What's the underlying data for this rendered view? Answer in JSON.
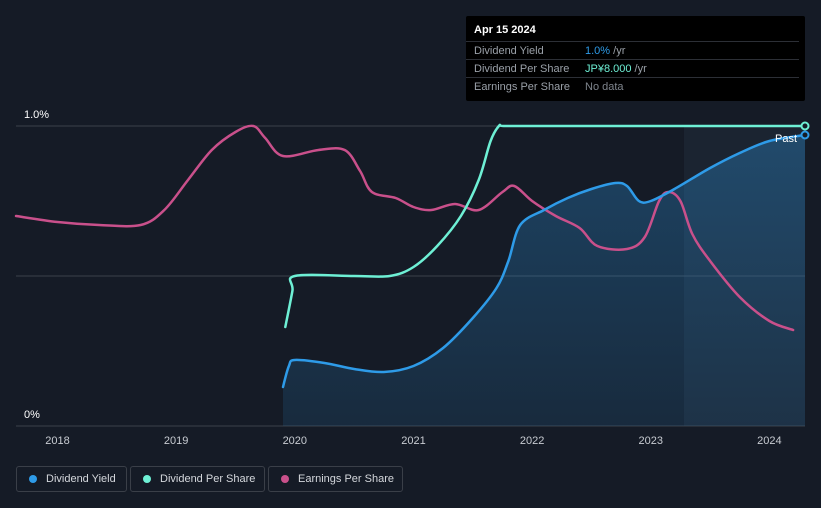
{
  "tooltip": {
    "date": "Apr 15 2024",
    "rows": [
      {
        "label": "Dividend Yield",
        "value": "1.0%",
        "unit": " /yr",
        "color": "#2e9be8"
      },
      {
        "label": "Dividend Per Share",
        "value": "JP¥8.000",
        "unit": " /yr",
        "color": "#6ef0d5"
      },
      {
        "label": "Earnings Per Share",
        "value": "No data",
        "unit": "",
        "color": "#7f858d"
      }
    ]
  },
  "legend": [
    {
      "label": "Dividend Yield",
      "color": "#2e9be8"
    },
    {
      "label": "Dividend Per Share",
      "color": "#6ef0d5"
    },
    {
      "label": "Earnings Per Share",
      "color": "#c9508b"
    }
  ],
  "chart_data": {
    "type": "line",
    "title": "",
    "xlabel": "",
    "ylabel": "",
    "xlim": [
      2017.65,
      2024.3
    ],
    "ylim": [
      0,
      1.0
    ],
    "y_ticks": [
      {
        "value": 0,
        "label": "0%"
      },
      {
        "value": 1.0,
        "label": "1.0%"
      }
    ],
    "x_ticks": [
      {
        "value": 2018,
        "label": "2018"
      },
      {
        "value": 2019,
        "label": "2019"
      },
      {
        "value": 2020,
        "label": "2020"
      },
      {
        "value": 2021,
        "label": "2021"
      },
      {
        "value": 2022,
        "label": "2022"
      },
      {
        "value": 2023,
        "label": "2023"
      },
      {
        "value": 2024,
        "label": "2024"
      }
    ],
    "past_label": "Past",
    "past_from": 2023.28,
    "series": [
      {
        "name": "Dividend Yield",
        "color": "#2e9be8",
        "fill": true,
        "x": [
          2019.9,
          2019.95,
          2020.0,
          2020.25,
          2020.5,
          2020.75,
          2021.0,
          2021.25,
          2021.5,
          2021.7,
          2021.8,
          2021.9,
          2022.1,
          2022.3,
          2022.5,
          2022.7,
          2022.8,
          2022.9,
          2023.0,
          2023.2,
          2023.5,
          2023.75,
          2024.0,
          2024.3
        ],
        "values": [
          0.13,
          0.2,
          0.22,
          0.21,
          0.19,
          0.18,
          0.2,
          0.26,
          0.36,
          0.46,
          0.55,
          0.67,
          0.72,
          0.76,
          0.79,
          0.81,
          0.8,
          0.75,
          0.75,
          0.79,
          0.86,
          0.91,
          0.95,
          0.97
        ]
      },
      {
        "name": "Dividend Per Share",
        "color": "#6ef0d5",
        "fill": false,
        "x": [
          2019.92,
          2019.98,
          2020.0,
          2020.5,
          2020.8,
          2021.0,
          2021.2,
          2021.4,
          2021.55,
          2021.65,
          2021.72,
          2021.76,
          2022.0,
          2023.0,
          2024.3
        ],
        "values": [
          0.33,
          0.45,
          0.5,
          0.5,
          0.5,
          0.53,
          0.6,
          0.7,
          0.82,
          0.95,
          1.0,
          1.0,
          1.0,
          1.0,
          1.0
        ]
      },
      {
        "name": "Earnings Per Share",
        "color": "#c9508b",
        "fill": false,
        "x": [
          2017.65,
          2018.0,
          2018.35,
          2018.7,
          2018.9,
          2019.1,
          2019.3,
          2019.5,
          2019.65,
          2019.75,
          2019.9,
          2020.2,
          2020.42,
          2020.55,
          2020.65,
          2020.85,
          2021.0,
          2021.15,
          2021.35,
          2021.55,
          2021.75,
          2021.85,
          2022.0,
          2022.2,
          2022.4,
          2022.55,
          2022.8,
          2022.95,
          2023.07,
          2023.15,
          2023.25,
          2023.35,
          2023.5,
          2023.75,
          2024.0,
          2024.2
        ],
        "values": [
          0.7,
          0.68,
          0.67,
          0.67,
          0.72,
          0.82,
          0.92,
          0.98,
          1.0,
          0.96,
          0.9,
          0.92,
          0.92,
          0.85,
          0.78,
          0.76,
          0.73,
          0.72,
          0.74,
          0.72,
          0.78,
          0.8,
          0.75,
          0.7,
          0.66,
          0.6,
          0.59,
          0.63,
          0.75,
          0.78,
          0.75,
          0.64,
          0.55,
          0.43,
          0.35,
          0.32
        ]
      }
    ]
  }
}
